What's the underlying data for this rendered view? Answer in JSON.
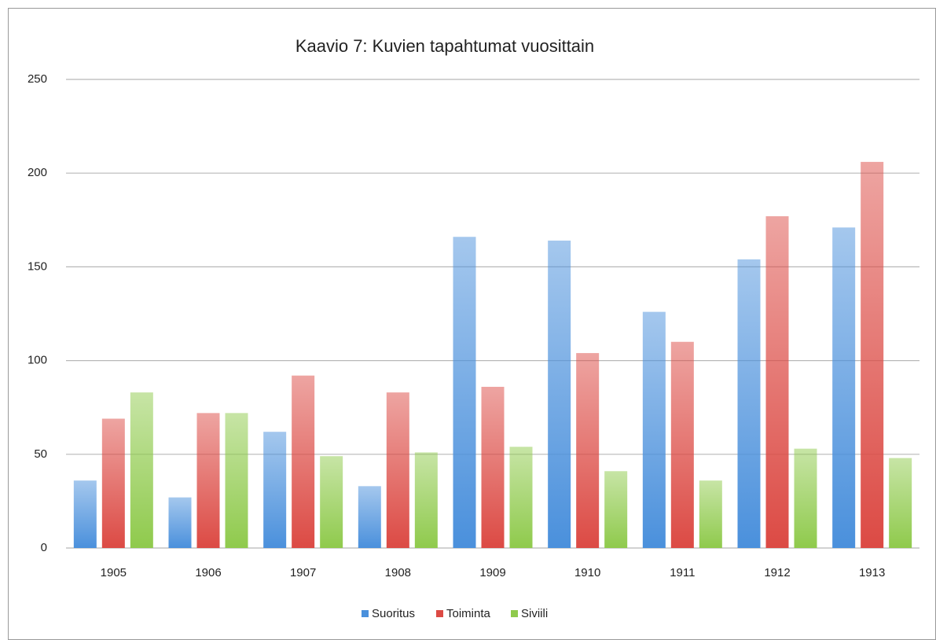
{
  "chart_data": {
    "type": "bar",
    "title": "Kaavio 7: Kuvien tapahtumat vuosittain",
    "categories": [
      "1905",
      "1906",
      "1907",
      "1908",
      "1909",
      "1910",
      "1911",
      "1912",
      "1913"
    ],
    "series": [
      {
        "name": "Suoritus",
        "color": "#4a90dc",
        "values": [
          36,
          27,
          62,
          33,
          166,
          164,
          126,
          154,
          171
        ]
      },
      {
        "name": "Toiminta",
        "color": "#dc4a44",
        "values": [
          69,
          72,
          92,
          83,
          86,
          104,
          110,
          177,
          206
        ]
      },
      {
        "name": "Siviili",
        "color": "#8fca4c",
        "values": [
          83,
          72,
          49,
          51,
          54,
          41,
          36,
          53,
          48
        ]
      }
    ],
    "ylim": [
      0,
      250
    ],
    "yticks": [
      0,
      50,
      100,
      150,
      200,
      250
    ],
    "grid": true,
    "legend": "bottom"
  }
}
